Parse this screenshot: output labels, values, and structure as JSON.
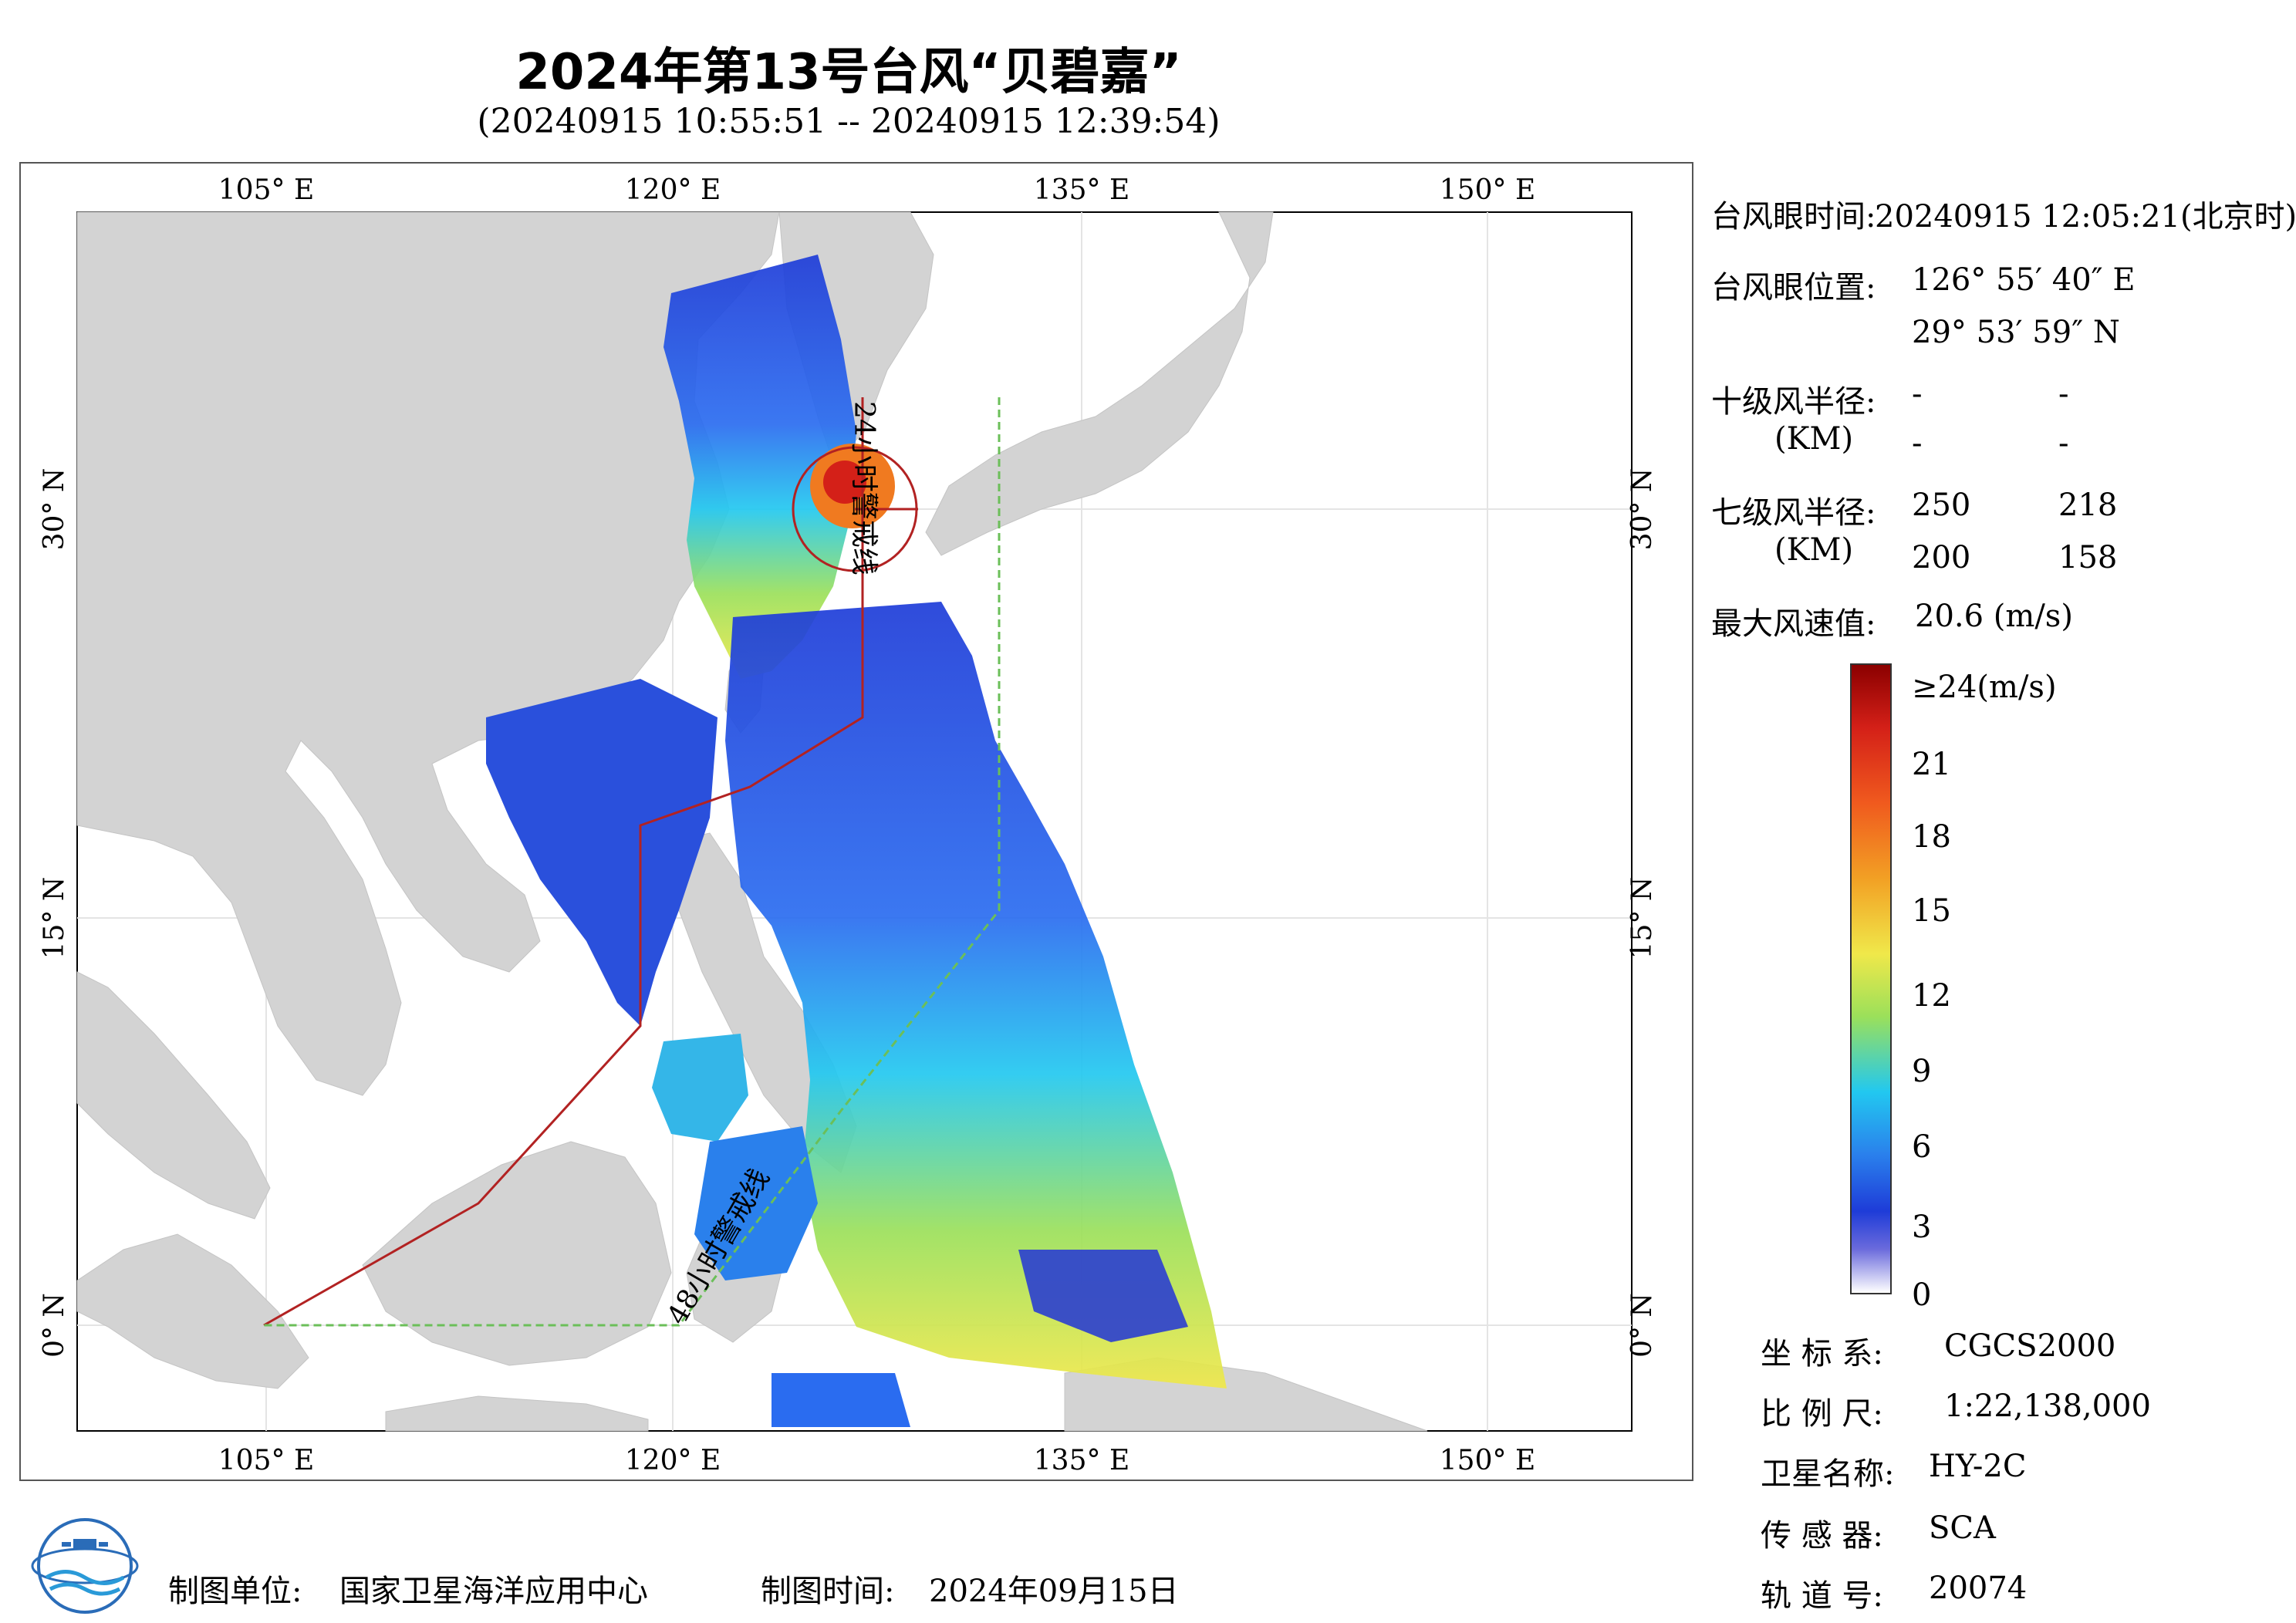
{
  "header": {
    "title": "2024年第13号台风“贝碧嘉”",
    "subtitle": "(20240915 10:55:51 -- 20240915 12:39:54)"
  },
  "map": {
    "lon_labels": [
      "105° E",
      "120° E",
      "135° E",
      "150° E"
    ],
    "lat_labels": [
      "30° N",
      "15° N",
      "0° N"
    ],
    "track_labels": [
      "24小时警戒线",
      "48小时警戒线"
    ],
    "colors": {
      "land": "#d3d3d3",
      "ocean": "#ffffff",
      "warning_24h": "#b22222",
      "warning_48h": "#6bbf59"
    }
  },
  "info": {
    "eye_time_label": "台风眼时间:",
    "eye_time_value": "20240915 12:05:21(北京时)",
    "eye_pos_label": "台风眼位置:",
    "eye_lon": "126° 55′ 40″ E",
    "eye_lat": "29° 53′ 59″ N",
    "r10_label": "十级风半径:",
    "r10_unit": "(KM)",
    "r10_values": [
      "-",
      "-",
      "-",
      "-"
    ],
    "r7_label": "七级风半径:",
    "r7_unit": "(KM)",
    "r7_values": [
      "250",
      "218",
      "200",
      "158"
    ],
    "max_label": "最大风速值:",
    "max_value": "20.6  (m/s)"
  },
  "colorbar": {
    "labels": [
      "≥24(m/s)",
      "21",
      "18",
      "15",
      "12",
      "9",
      "6",
      "3",
      "0"
    ]
  },
  "metadata": {
    "coord_label": "坐 标 系:",
    "coord_value": "CGCS2000",
    "scale_label": "比 例 尺:",
    "scale_value": "1:22,138,000",
    "sat_label": "卫星名称:",
    "sat_value": "HY-2C",
    "sensor_label": "传 感 器:",
    "sensor_value": "SCA",
    "orbit_label": "轨 道 号:",
    "orbit_value": "20074"
  },
  "footer": {
    "org_label": "制图单位:",
    "org_value": "国家卫星海洋应用中心",
    "time_label": "制图时间:",
    "time_value": "2024年09月15日"
  }
}
